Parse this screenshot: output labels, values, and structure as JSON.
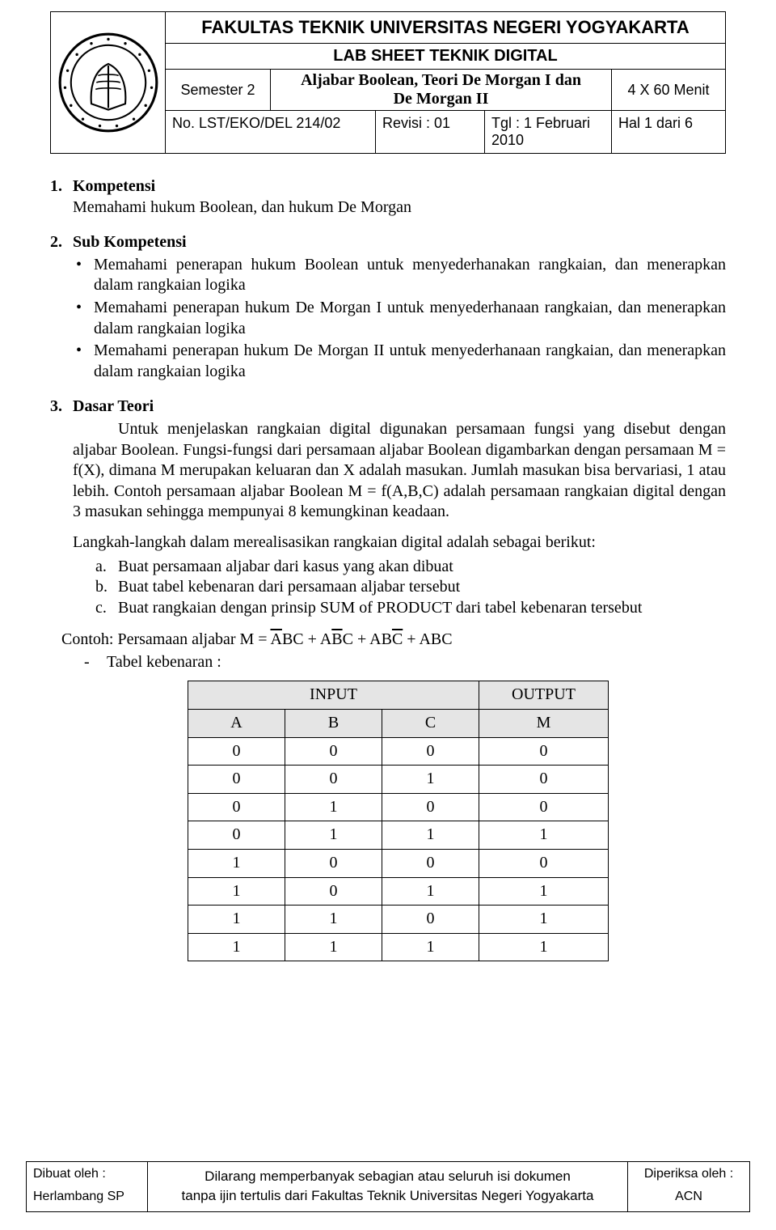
{
  "header": {
    "faculty": "FAKULTAS TEKNIK UNIVERSITAS NEGERI YOGYAKARTA",
    "labsheet": "LAB SHEET TEKNIK DIGITAL",
    "semester": "Semester 2",
    "topic_l1": "Aljabar Boolean, Teori De Morgan I dan",
    "topic_l2": "De Morgan II",
    "duration": "4 X 60 Menit",
    "docno": "No. LST/EKO/DEL 214/02",
    "rev": "Revisi : 01",
    "date": "Tgl : 1 Februari 2010",
    "page": "Hal 1 dari 6",
    "logo_alt": "university-seal"
  },
  "s1": {
    "num": "1.",
    "title": "Kompetensi",
    "text": "Memahami  hukum Boolean, dan hukum De Morgan"
  },
  "s2": {
    "num": "2.",
    "title": "Sub Kompetensi",
    "b1": "Memahami penerapan hukum Boolean untuk menyederhanakan rangkaian, dan menerapkan dalam rangkaian logika",
    "b2": "Memahami penerapan hukum De Morgan I untuk menyederhanaan rangkaian, dan menerapkan dalam rangkaian logika",
    "b3": "Memahami penerapan hukum De Morgan II untuk menyederhanaan rangkaian, dan menerapkan dalam rangkaian logika"
  },
  "s3": {
    "num": "3.",
    "title": "Dasar Teori",
    "p1": "Untuk menjelaskan rangkaian digital digunakan persamaan fungsi yang disebut dengan aljabar Boolean. Fungsi-fungsi dari persamaan aljabar Boolean digambarkan dengan persamaan M = f(X), dimana M merupakan keluaran dan X adalah masukan. Jumlah masukan bisa bervariasi,  1 atau lebih. Contoh persamaan aljabar Boolean M = f(A,B,C) adalah persamaan rangkaian digital dengan 3 masukan sehingga mempunyai 8 kemungkinan keadaan.",
    "p2": "Langkah-langkah dalam merealisasikan rangkaian digital adalah sebagai berikut:",
    "step_a_lt": "a.",
    "step_a": "Buat persamaan aljabar dari kasus yang akan dibuat",
    "step_b_lt": "b.",
    "step_b": "Buat tabel kebenaran dari persamaan aljabar tersebut",
    "step_c_lt": "c.",
    "step_c": "Buat rangkaian dengan prinsip SUM of PRODUCT dari tabel kebenaran tersebut",
    "eq_prefix": "Contoh: Persamaan aljabar ",
    "eq_M": "M",
    "eq_eq": " = ",
    "eq_t1_a": "A",
    "eq_t1_b": "BC",
    "eq_t2_a": "A",
    "eq_t2_b": "B",
    "eq_t2_c": "C",
    "eq_t3_a": "AB",
    "eq_t3_b": "C",
    "eq_t4": "ABC",
    "eq_plus": " + ",
    "dash": "Tabel kebenaran :"
  },
  "table": {
    "hdr_input": "INPUT",
    "hdr_output": "OUTPUT",
    "col_a": "A",
    "col_b": "B",
    "col_c": "C",
    "col_m": "M",
    "rows": [
      [
        "0",
        "0",
        "0",
        "0"
      ],
      [
        "0",
        "0",
        "1",
        "0"
      ],
      [
        "0",
        "1",
        "0",
        "0"
      ],
      [
        "0",
        "1",
        "1",
        "1"
      ],
      [
        "1",
        "0",
        "0",
        "0"
      ],
      [
        "1",
        "0",
        "1",
        "1"
      ],
      [
        "1",
        "1",
        "0",
        "1"
      ],
      [
        "1",
        "1",
        "1",
        "1"
      ]
    ],
    "header_bg": "#e5e5e5"
  },
  "footer": {
    "made_lbl": "Dibuat oleh :",
    "made_by": "Herlambang SP",
    "mid_l1": "Dilarang memperbanyak sebagian atau seluruh isi dokumen",
    "mid_l2": "tanpa ijin tertulis dari Fakultas Teknik Universitas Negeri Yogyakarta",
    "chk_lbl": "Diperiksa oleh :",
    "chk_by": "ACN"
  }
}
